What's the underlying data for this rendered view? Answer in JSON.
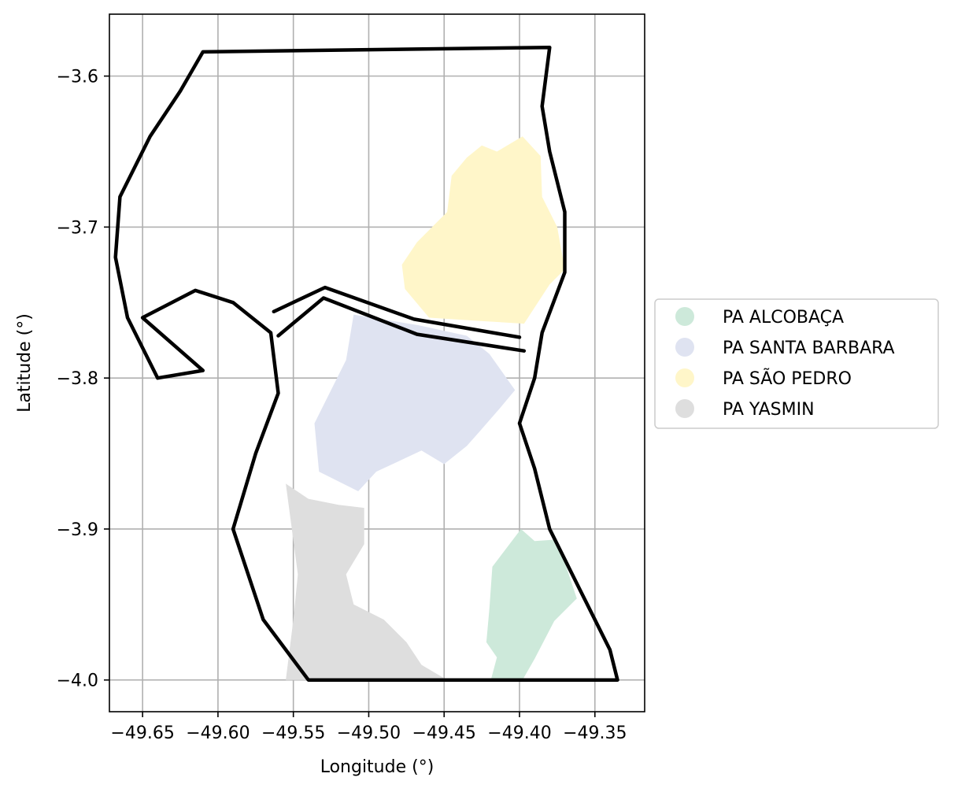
{
  "chart_data": {
    "type": "map",
    "xlabel": "Longitude (°)",
    "ylabel": "Latitude (°)",
    "xlim": [
      -49.672,
      -49.317
    ],
    "ylim": [
      -4.021,
      -3.559
    ],
    "xticks": [
      -49.65,
      -49.6,
      -49.55,
      -49.5,
      -49.45,
      -49.4,
      -49.35
    ],
    "xtick_labels": [
      "−49.65",
      "−49.60",
      "−49.55",
      "−49.50",
      "−49.45",
      "−49.40",
      "−49.35"
    ],
    "yticks": [
      -3.6,
      -3.7,
      -3.8,
      -3.9,
      -4.0
    ],
    "ytick_labels": [
      "−3.6",
      "−3.7",
      "−3.8",
      "−3.9",
      "−4.0"
    ],
    "grid": true,
    "legend_position": "right",
    "regions": [
      {
        "name": "PA ALCOBAÇA",
        "color": "#cde9da",
        "polygon": [
          [
            -49.399,
            -3.9
          ],
          [
            -49.39,
            -3.908
          ],
          [
            -49.376,
            -3.907
          ],
          [
            -49.37,
            -3.922
          ],
          [
            -49.362,
            -3.946
          ],
          [
            -49.377,
            -3.961
          ],
          [
            -49.39,
            -3.986
          ],
          [
            -49.398,
            -4.0
          ],
          [
            -49.419,
            -4.0
          ],
          [
            -49.415,
            -3.985
          ],
          [
            -49.422,
            -3.975
          ],
          [
            -49.42,
            -3.953
          ],
          [
            -49.418,
            -3.925
          ]
        ]
      },
      {
        "name": "PA SANTA BARBARA",
        "color": "#dfe3f1",
        "polygon": [
          [
            -49.51,
            -3.758
          ],
          [
            -49.467,
            -3.765
          ],
          [
            -49.435,
            -3.772
          ],
          [
            -49.42,
            -3.784
          ],
          [
            -49.403,
            -3.808
          ],
          [
            -49.413,
            -3.82
          ],
          [
            -49.427,
            -3.836
          ],
          [
            -49.435,
            -3.845
          ],
          [
            -49.45,
            -3.857
          ],
          [
            -49.465,
            -3.848
          ],
          [
            -49.48,
            -3.855
          ],
          [
            -49.495,
            -3.862
          ],
          [
            -49.507,
            -3.875
          ],
          [
            -49.533,
            -3.862
          ],
          [
            -49.536,
            -3.83
          ],
          [
            -49.525,
            -3.808
          ],
          [
            -49.515,
            -3.788
          ]
        ]
      },
      {
        "name": "PA SÃO PEDRO",
        "color": "#fff6c9",
        "polygon": [
          [
            -49.435,
            -3.654
          ],
          [
            -49.425,
            -3.646
          ],
          [
            -49.415,
            -3.65
          ],
          [
            -49.398,
            -3.64
          ],
          [
            -49.386,
            -3.653
          ],
          [
            -49.385,
            -3.68
          ],
          [
            -49.375,
            -3.7
          ],
          [
            -49.37,
            -3.728
          ],
          [
            -49.38,
            -3.738
          ],
          [
            -49.397,
            -3.764
          ],
          [
            -49.43,
            -3.762
          ],
          [
            -49.46,
            -3.76
          ],
          [
            -49.476,
            -3.741
          ],
          [
            -49.478,
            -3.725
          ],
          [
            -49.468,
            -3.71
          ],
          [
            -49.448,
            -3.69
          ],
          [
            -49.445,
            -3.666
          ]
        ]
      },
      {
        "name": "PA YASMIN",
        "color": "#dedede",
        "polygon": [
          [
            -49.555,
            -3.87
          ],
          [
            -49.54,
            -3.88
          ],
          [
            -49.52,
            -3.884
          ],
          [
            -49.503,
            -3.886
          ],
          [
            -49.503,
            -3.91
          ],
          [
            -49.515,
            -3.93
          ],
          [
            -49.51,
            -3.95
          ],
          [
            -49.49,
            -3.96
          ],
          [
            -49.475,
            -3.975
          ],
          [
            -49.465,
            -3.99
          ],
          [
            -49.448,
            -4.0
          ],
          [
            -49.555,
            -4.0
          ],
          [
            -49.55,
            -3.96
          ],
          [
            -49.547,
            -3.93
          ]
        ]
      }
    ],
    "boundaries": [
      {
        "name": "outer",
        "polygon": [
          [
            -49.61,
            -3.584
          ],
          [
            -49.38,
            -3.581
          ],
          [
            -49.385,
            -3.62
          ],
          [
            -49.38,
            -3.65
          ],
          [
            -49.37,
            -3.69
          ],
          [
            -49.37,
            -3.73
          ],
          [
            -49.385,
            -3.77
          ],
          [
            -49.39,
            -3.8
          ],
          [
            -49.4,
            -3.83
          ],
          [
            -49.39,
            -3.86
          ],
          [
            -49.38,
            -3.9
          ],
          [
            -49.36,
            -3.94
          ],
          [
            -49.34,
            -3.98
          ],
          [
            -49.335,
            -4.0
          ],
          [
            -49.54,
            -4.0
          ],
          [
            -49.57,
            -3.96
          ],
          [
            -49.59,
            -3.9
          ],
          [
            -49.575,
            -3.85
          ],
          [
            -49.56,
            -3.81
          ],
          [
            -49.565,
            -3.77
          ],
          [
            -49.59,
            -3.75
          ],
          [
            -49.615,
            -3.742
          ],
          [
            -49.65,
            -3.76
          ],
          [
            -49.61,
            -3.795
          ],
          [
            -49.64,
            -3.8
          ],
          [
            -49.66,
            -3.76
          ],
          [
            -49.668,
            -3.72
          ],
          [
            -49.665,
            -3.68
          ],
          [
            -49.645,
            -3.64
          ],
          [
            -49.625,
            -3.61
          ]
        ]
      },
      {
        "name": "divider-upper",
        "polygon": [
          [
            -49.563,
            -3.756
          ],
          [
            -49.529,
            -3.74
          ],
          [
            -49.47,
            -3.761
          ],
          [
            -49.4,
            -3.773
          ]
        ]
      },
      {
        "name": "divider-lower",
        "polygon": [
          [
            -49.56,
            -3.772
          ],
          [
            -49.53,
            -3.747
          ],
          [
            -49.468,
            -3.771
          ],
          [
            -49.397,
            -3.782
          ]
        ]
      }
    ]
  }
}
